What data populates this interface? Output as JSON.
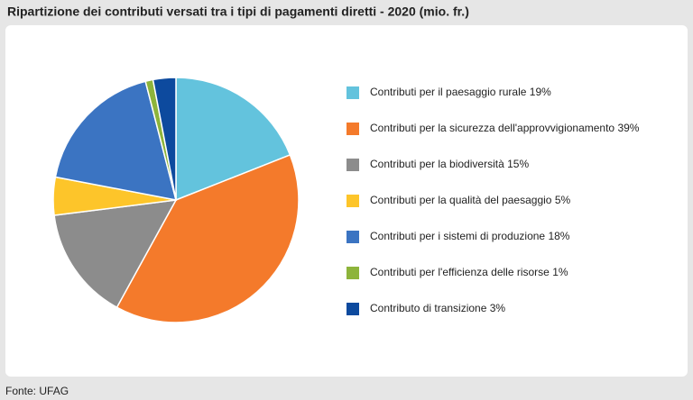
{
  "chart_data": {
    "type": "pie",
    "title": "Ripartizione dei contributi versati tra i tipi di pagamenti diretti - 2020 (mio. fr.)",
    "source": "Fonte: UFAG",
    "categories": [
      "Contributi per il paesaggio rurale",
      "Contributi per la sicurezza dell'approvvigionamento",
      "Contributi per la biodiversità",
      "Contributi per la qualità del paesaggio",
      "Contributi per i sistemi di produzione",
      "Contributi per l'efficienza delle risorse",
      "Contributo di transizione"
    ],
    "values": [
      19,
      39,
      15,
      5,
      18,
      1,
      3
    ],
    "value_labels": [
      "19%",
      "39%",
      "15%",
      "5%",
      "18%",
      "1%",
      "3%"
    ],
    "colors": [
      "#63c3dd",
      "#f47a2b",
      "#8c8c8c",
      "#fdc52a",
      "#3b74c2",
      "#8db43b",
      "#0d4a9e"
    ],
    "legend": "right"
  }
}
